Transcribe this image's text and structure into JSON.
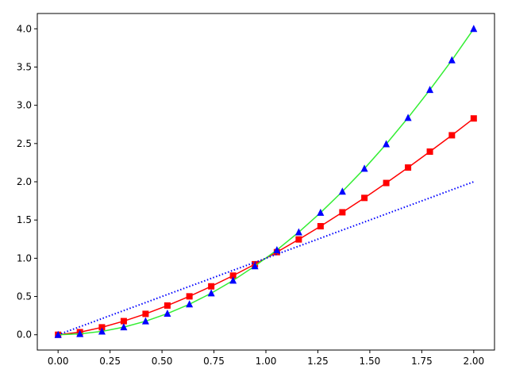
{
  "chart_data": {
    "type": "line",
    "title": "",
    "xlabel": "",
    "ylabel": "",
    "xlim": [
      -0.1,
      2.1
    ],
    "ylim": [
      -0.2,
      4.2
    ],
    "grid": false,
    "legend": "none",
    "x_ticks": [
      0.0,
      0.25,
      0.5,
      0.75,
      1.0,
      1.25,
      1.5,
      1.75,
      2.0
    ],
    "x_tick_labels": [
      "0.00",
      "0.25",
      "0.50",
      "0.75",
      "1.00",
      "1.25",
      "1.50",
      "1.75",
      "2.00"
    ],
    "y_ticks": [
      0.0,
      0.5,
      1.0,
      1.5,
      2.0,
      2.5,
      3.0,
      3.5,
      4.0
    ],
    "y_tick_labels": [
      "0.0",
      "0.5",
      "1.0",
      "1.5",
      "2.0",
      "2.5",
      "3.0",
      "3.5",
      "4.0"
    ],
    "x": [
      0.0,
      0.105,
      0.211,
      0.316,
      0.421,
      0.526,
      0.632,
      0.737,
      0.842,
      0.947,
      1.053,
      1.158,
      1.263,
      1.368,
      1.474,
      1.579,
      1.684,
      1.789,
      1.895,
      2.0
    ],
    "series": [
      {
        "values": [
          0.0,
          0.034,
          0.097,
          0.178,
          0.273,
          0.382,
          0.502,
          0.633,
          0.773,
          0.922,
          1.08,
          1.246,
          1.419,
          1.601,
          1.789,
          1.984,
          2.186,
          2.394,
          2.608,
          2.828
        ],
        "color": "#ff0000",
        "line": "solid",
        "marker": "square"
      },
      {
        "values": [
          0.0,
          0.011,
          0.044,
          0.1,
          0.177,
          0.277,
          0.399,
          0.543,
          0.709,
          0.898,
          1.108,
          1.341,
          1.596,
          1.873,
          2.172,
          2.493,
          2.837,
          3.202,
          3.59,
          4.0
        ],
        "color": "#33ee33",
        "line": "solid",
        "marker": "triangle",
        "marker_color": "#0000ff"
      },
      {
        "values": [
          0.0,
          0.105,
          0.211,
          0.316,
          0.421,
          0.526,
          0.632,
          0.737,
          0.842,
          0.947,
          1.053,
          1.158,
          1.263,
          1.368,
          1.474,
          1.579,
          1.684,
          1.789,
          1.895,
          2.0
        ],
        "color": "#0000ff",
        "line": "dotted",
        "marker": "none"
      }
    ]
  }
}
